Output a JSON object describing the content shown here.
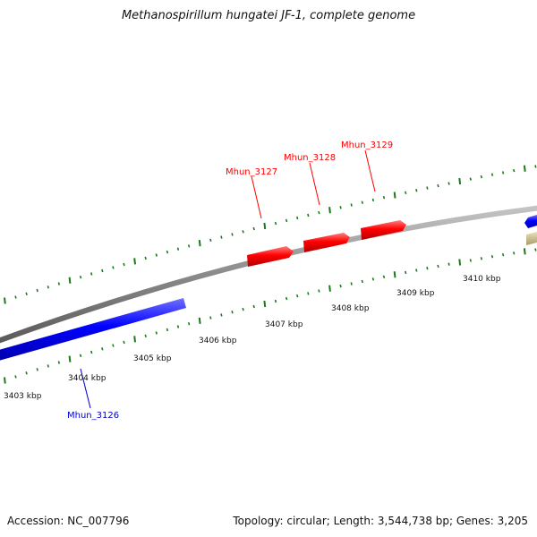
{
  "title": "Methanospirillum hungatei JF-1, complete genome",
  "accession": "Accession: NC_007796",
  "summary": "Topology: circular; Length: 3,544,738 bp; Genes: 3,205",
  "colors": {
    "backbone": "#8a8a8a",
    "forward_gene": "#ff0000",
    "reverse_gene": "#0000ff",
    "other_feature": "#c8bd8a",
    "tick": "#1a7a1a"
  },
  "scale_labels": [
    "3403 kbp",
    "3404 kbp",
    "3405 kbp",
    "3406 kbp",
    "3407 kbp",
    "3408 kbp",
    "3409 kbp",
    "3410 kbp"
  ],
  "genes": {
    "mhun_3126": "Mhun_3126",
    "mhun_3127": "Mhun_3127",
    "mhun_3128": "Mhun_3128",
    "mhun_3129": "Mhun_3129"
  }
}
